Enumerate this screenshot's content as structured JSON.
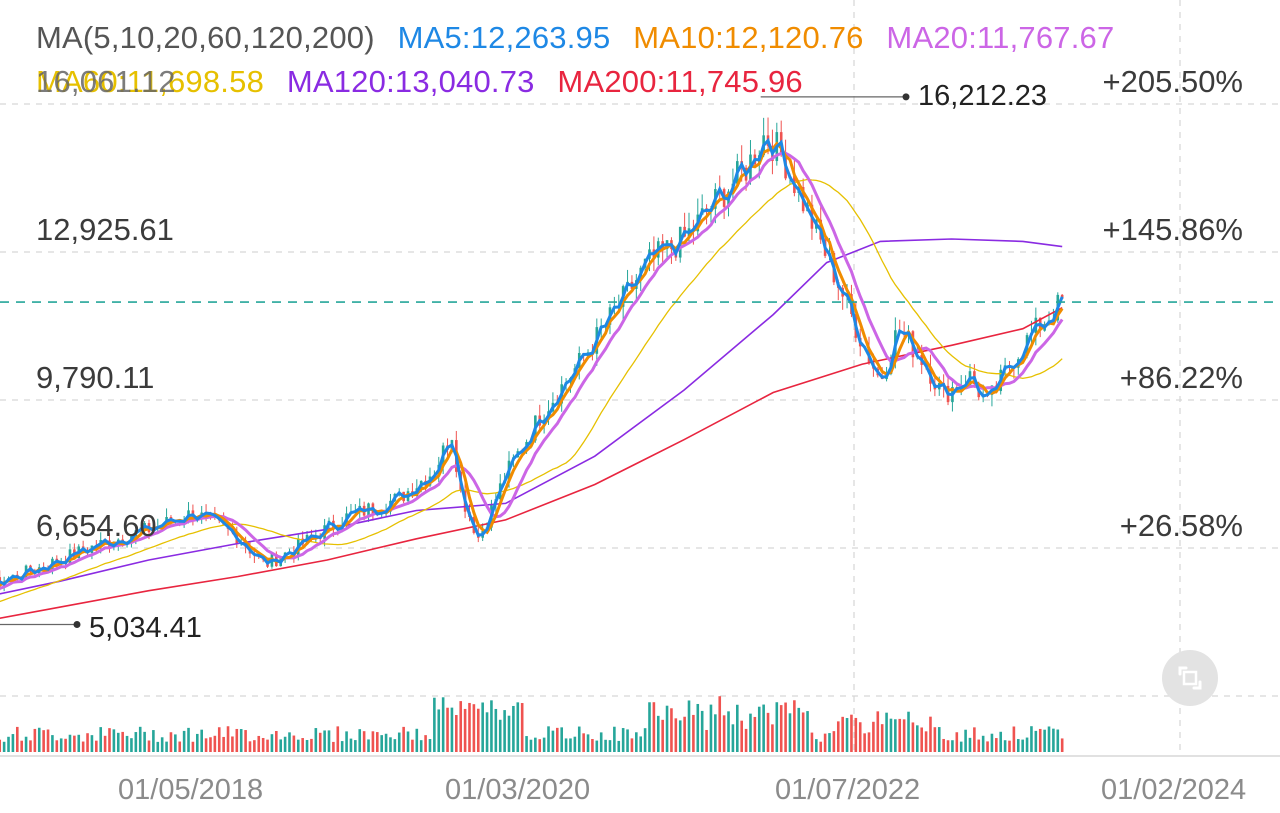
{
  "legend": {
    "ma_title": "MA(5,10,20,60,120,200)",
    "ma5": "MA5:12,263.95",
    "ma10": "MA10:12,120.76",
    "ma20": "MA20:11,767.67",
    "ma60": "MA60:11,698.58",
    "ma120": "MA120:13,040.73",
    "ma200": "MA200:11,745.96",
    "overlap_text": "16,061.12"
  },
  "colors": {
    "up": "#26a69a",
    "down": "#ef5350",
    "ma5": "#1e88e5",
    "ma10": "#f08c00",
    "ma20": "#cc66e6",
    "ma60": "#e6c000",
    "ma120": "#8a2be2",
    "ma200": "#e8253f",
    "dash_line": "#26a69a",
    "grid": "#d6d6d6"
  },
  "chart_data": {
    "type": "candlestick",
    "y_axis_labels": [
      "12,925.61",
      "9,790.11",
      "6,654.60"
    ],
    "pct_axis_labels": [
      "+205.50%",
      "+145.86%",
      "+86.22%",
      "+26.58%"
    ],
    "x_axis_labels": [
      "01/05/2018",
      "01/03/2020",
      "01/07/2022",
      "01/02/2024"
    ],
    "high_annotation": "16,212.23",
    "low_annotation": "5,034.41",
    "current_price_approx": 11865,
    "close_series": [
      [
        2017.0,
        5100
      ],
      [
        2017.3,
        5450
      ],
      [
        2017.6,
        5850
      ],
      [
        2017.9,
        6250
      ],
      [
        2018.2,
        6700
      ],
      [
        2018.5,
        7050
      ],
      [
        2018.75,
        7400
      ],
      [
        2019.0,
        6900
      ],
      [
        2019.15,
        6300
      ],
      [
        2019.3,
        6600
      ],
      [
        2019.6,
        7300
      ],
      [
        2019.9,
        7700
      ],
      [
        2020.1,
        8300
      ],
      [
        2020.2,
        9100
      ],
      [
        2020.25,
        7800
      ],
      [
        2020.35,
        6850
      ],
      [
        2020.5,
        8200
      ],
      [
        2020.7,
        9500
      ],
      [
        2020.9,
        10500
      ],
      [
        2021.1,
        11600
      ],
      [
        2021.3,
        12700
      ],
      [
        2021.5,
        13200
      ],
      [
        2021.7,
        14100
      ],
      [
        2021.85,
        14700
      ],
      [
        2021.95,
        15400
      ],
      [
        2022.05,
        15000
      ],
      [
        2022.2,
        13700
      ],
      [
        2022.35,
        12400
      ],
      [
        2022.5,
        11000
      ],
      [
        2022.6,
        10200
      ],
      [
        2022.7,
        11300
      ],
      [
        2022.85,
        10600
      ],
      [
        2022.95,
        9900
      ],
      [
        2023.1,
        10300
      ],
      [
        2023.2,
        9700
      ],
      [
        2023.35,
        10700
      ],
      [
        2023.5,
        11400
      ],
      [
        2023.62,
        11865
      ]
    ],
    "ma120_series": [
      [
        2017.0,
        5150
      ],
      [
        2017.5,
        5550
      ],
      [
        2018.0,
        5950
      ],
      [
        2018.5,
        6400
      ],
      [
        2019.0,
        6750
      ],
      [
        2019.5,
        7050
      ],
      [
        2020.0,
        7450
      ],
      [
        2020.5,
        7600
      ],
      [
        2021.0,
        8600
      ],
      [
        2021.5,
        10000
      ],
      [
        2022.0,
        11600
      ],
      [
        2022.3,
        12700
      ],
      [
        2022.6,
        13150
      ],
      [
        2023.0,
        13200
      ],
      [
        2023.4,
        13150
      ],
      [
        2023.62,
        13040
      ]
    ],
    "ma200_series": [
      [
        2017.0,
        4700
      ],
      [
        2017.5,
        5050
      ],
      [
        2018.0,
        5400
      ],
      [
        2018.5,
        5750
      ],
      [
        2019.0,
        6050
      ],
      [
        2019.5,
        6400
      ],
      [
        2020.0,
        6850
      ],
      [
        2020.5,
        7250
      ],
      [
        2021.0,
        8000
      ],
      [
        2021.5,
        8950
      ],
      [
        2022.0,
        9950
      ],
      [
        2022.5,
        10550
      ],
      [
        2023.0,
        10950
      ],
      [
        2023.4,
        11300
      ],
      [
        2023.62,
        11746
      ]
    ]
  }
}
